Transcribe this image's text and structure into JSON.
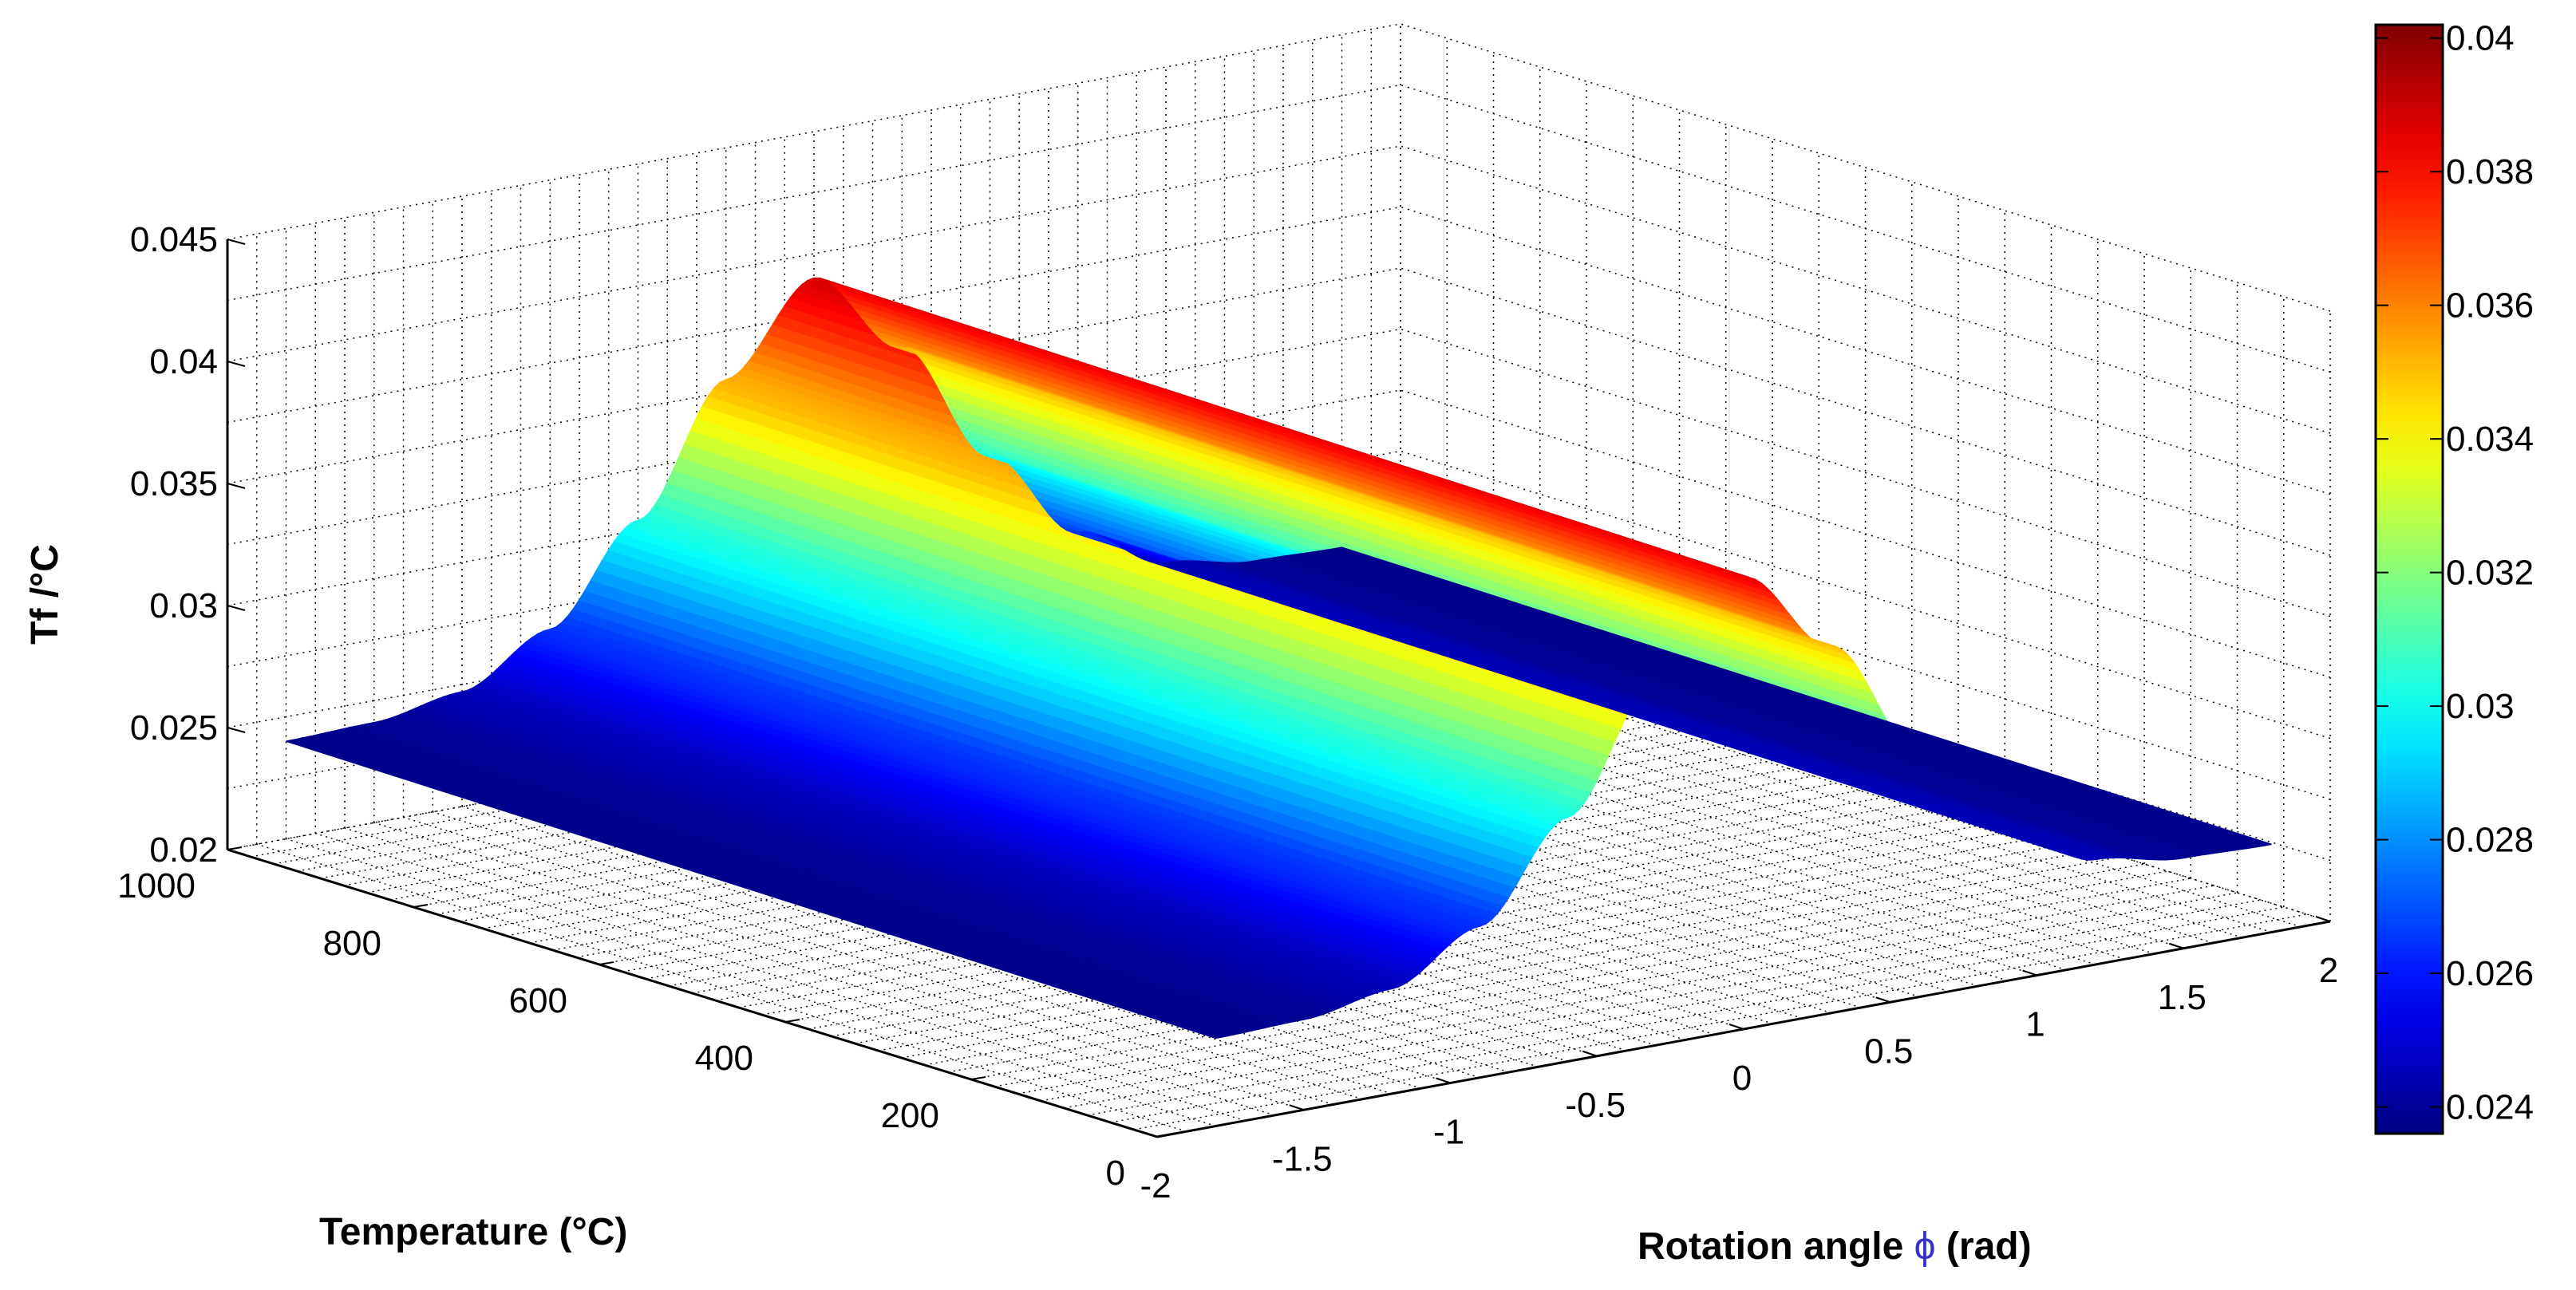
{
  "chart_data": {
    "type": "surface",
    "title": "",
    "xlabel": "Temperature (°C)",
    "ylabel_prefix": "Rotation angle ",
    "ylabel_symbol": "ϕ",
    "ylabel_suffix": " (rad)",
    "zlabel": "Tf /°C",
    "x_axis": {
      "range": [
        0,
        1000
      ],
      "ticks": [
        0,
        200,
        400,
        600,
        800,
        1000
      ],
      "tick_labels": [
        "0",
        "200",
        "400",
        "600",
        "800",
        "1000"
      ]
    },
    "y_axis": {
      "range": [
        -2,
        2
      ],
      "ticks": [
        -2,
        -1.5,
        -1,
        -0.5,
        0,
        0.5,
        1,
        1.5,
        2
      ],
      "tick_labels": [
        "-2",
        "-1.5",
        "-1",
        "-0.5",
        "0",
        "0.5",
        "1",
        "1.5",
        "2"
      ]
    },
    "z_axis": {
      "range": [
        0.02,
        0.045
      ],
      "ticks": [
        0.02,
        0.025,
        0.03,
        0.035,
        0.04,
        0.045
      ],
      "tick_labels": [
        "0.02",
        "0.025",
        "0.03",
        "0.035",
        "0.04",
        "0.045"
      ]
    },
    "surface": {
      "temperature_range": [
        0,
        1000
      ],
      "phi_range": [
        -1.8,
        1.8
      ],
      "phi_samples": [
        -1.8,
        -1.5,
        -1.2,
        -0.9,
        -0.6,
        -0.3,
        0,
        0.3,
        0.6,
        0.9,
        1.2,
        1.5,
        1.8
      ],
      "tf_at_temperature_0": [
        0.0236,
        0.0237,
        0.0243,
        0.0262,
        0.03,
        0.035,
        0.0385,
        0.035,
        0.03,
        0.0262,
        0.0243,
        0.0237,
        0.0236
      ],
      "tf_at_temperature_1000": [
        0.024,
        0.0241,
        0.0247,
        0.0266,
        0.0304,
        0.0355,
        0.039,
        0.0355,
        0.0304,
        0.0266,
        0.0247,
        0.0241,
        0.024
      ],
      "variation_with_temperature": "slight increase"
    },
    "colorbar": {
      "colormap": "jet",
      "range": [
        0.0236,
        0.0402
      ],
      "ticks": [
        0.024,
        0.026,
        0.028,
        0.03,
        0.032,
        0.034,
        0.036,
        0.038,
        0.04
      ],
      "tick_labels": [
        "0.024",
        "0.026",
        "0.028",
        "0.03",
        "0.032",
        "0.034",
        "0.036",
        "0.038",
        "0.04"
      ]
    },
    "grid": true
  }
}
